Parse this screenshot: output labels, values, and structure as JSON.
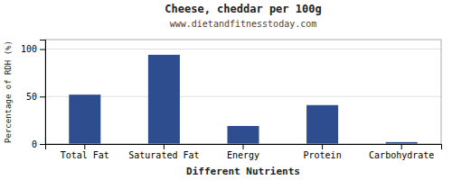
{
  "chart_data": {
    "type": "bar",
    "title": "Cheese, cheddar per 100g",
    "subtitle": "www.dietandfitnesstoday.com",
    "xlabel": "Different Nutrients",
    "ylabel": "Percentage of RDH (%)",
    "categories": [
      "Total Fat",
      "Saturated Fat",
      "Energy",
      "Protein",
      "Carbohydrate"
    ],
    "values": [
      52,
      94,
      19,
      41,
      2
    ],
    "color": "#2e4d8e",
    "ylim": [
      0,
      110
    ],
    "yticks": [
      0,
      50,
      100
    ],
    "grid": true
  }
}
